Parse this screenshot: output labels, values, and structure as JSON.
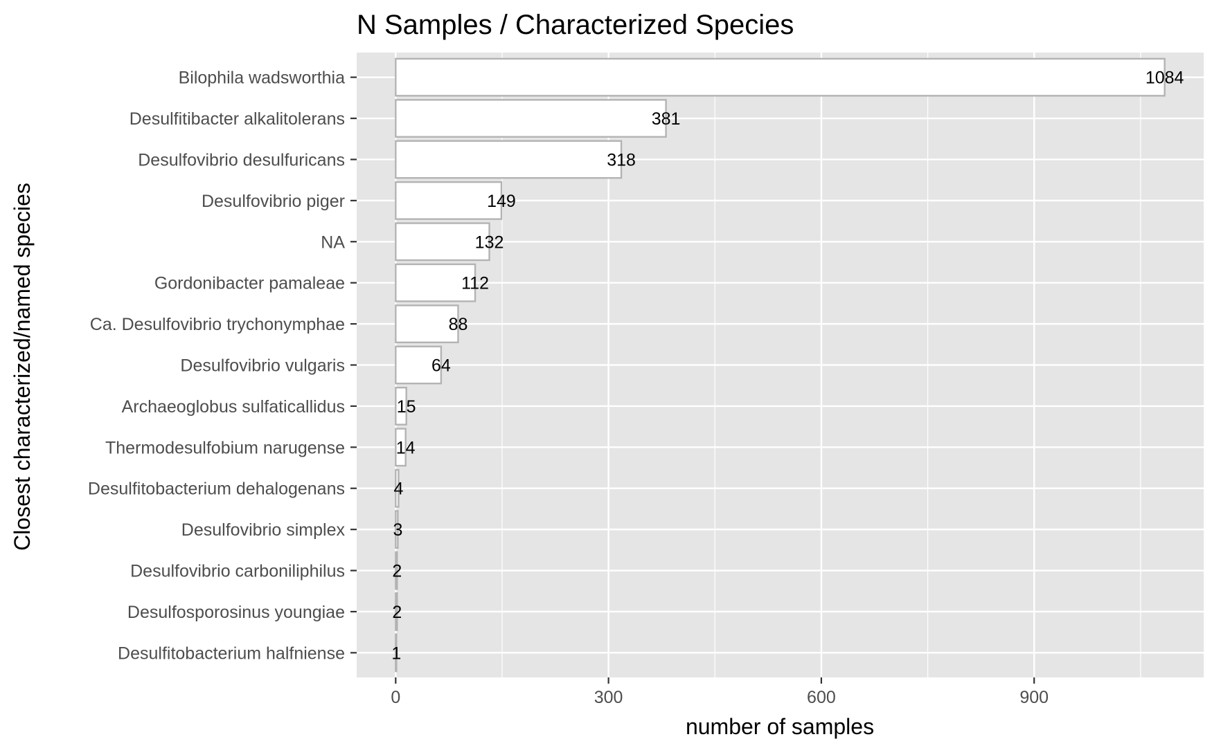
{
  "chart_data": {
    "type": "bar",
    "orientation": "horizontal",
    "title": "N Samples / Characterized Species",
    "xlabel": "number of samples",
    "ylabel": "Closest characterized/named species",
    "xlim": [
      -55,
      1139
    ],
    "xticks": [
      0,
      300,
      600,
      900
    ],
    "xtick_labels": [
      "0",
      "300",
      "600",
      "900"
    ],
    "grid": true,
    "categories": [
      "Bilophila wadsworthia",
      "Desulfitibacter alkalitolerans",
      "Desulfovibrio desulfuricans",
      "Desulfovibrio piger",
      "NA",
      "Gordonibacter pamaleae",
      "Ca. Desulfovibrio trychonymphae",
      "Desulfovibrio vulgaris",
      "Archaeoglobus sulfaticallidus",
      "Thermodesulfobium narugense",
      "Desulfitobacterium dehalogenans",
      "Desulfovibrio simplex",
      "Desulfovibrio carboniliphilus",
      "Desulfosporosinus youngiae",
      "Desulfitobacterium halfniense"
    ],
    "values": [
      1084,
      381,
      318,
      149,
      132,
      112,
      88,
      64,
      15,
      14,
      4,
      3,
      2,
      2,
      1
    ],
    "value_labels": [
      "1084",
      "381",
      "318",
      "149",
      "132",
      "112",
      "88",
      "64",
      "15",
      "14",
      "4",
      "3",
      "2",
      "2",
      "1"
    ],
    "colors": {
      "panel": "#e5e5e5",
      "grid": "#ffffff",
      "bar_fill": "#ffffff",
      "bar_stroke": "#b3b3b3",
      "tick": "#333333"
    }
  }
}
